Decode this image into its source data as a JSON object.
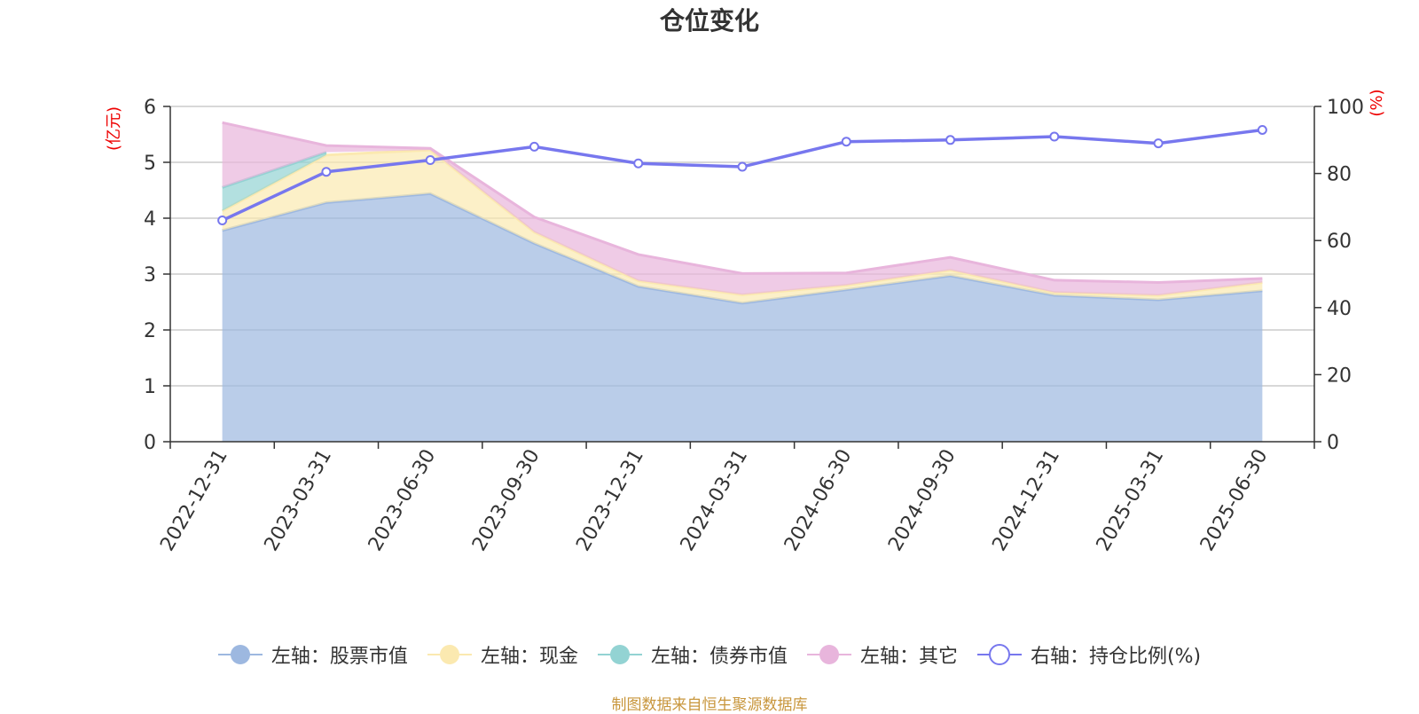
{
  "chart_data": {
    "type": "area",
    "title": "仓位变化",
    "categories": [
      "2022-12-31",
      "2023-03-31",
      "2023-06-30",
      "2023-09-30",
      "2023-12-31",
      "2024-03-31",
      "2024-06-30",
      "2024-09-30",
      "2024-12-31",
      "2025-03-31",
      "2025-06-30"
    ],
    "left_axis": {
      "label": "(亿元)",
      "min": 0,
      "max": 6,
      "ticks": [
        "0",
        "1",
        "2",
        "3",
        "4",
        "5",
        "6"
      ]
    },
    "right_axis": {
      "label": "(%)",
      "min": 0,
      "max": 100,
      "ticks": [
        "0",
        "20",
        "40",
        "60",
        "80",
        "100"
      ]
    },
    "grid": true,
    "stacked": true,
    "series": [
      {
        "name": "左轴：股票市值",
        "axis": "left",
        "color": "#9db8e0",
        "values": [
          3.78,
          4.28,
          4.44,
          3.55,
          2.78,
          2.48,
          2.72,
          2.97,
          2.62,
          2.54,
          2.7
        ]
      },
      {
        "name": "左轴：现金",
        "axis": "left",
        "color": "#fbe9b0",
        "values": [
          0.35,
          0.85,
          0.78,
          0.2,
          0.1,
          0.15,
          0.08,
          0.1,
          0.05,
          0.08,
          0.15
        ]
      },
      {
        "name": "左轴：债券市值",
        "axis": "left",
        "color": "#93d3d3",
        "values": [
          0.42,
          0.05,
          null,
          null,
          null,
          null,
          null,
          null,
          null,
          null,
          null
        ]
      },
      {
        "name": "左轴：其它",
        "axis": "left",
        "color": "#e8b5dc",
        "values": [
          1.16,
          0.12,
          0.03,
          0.27,
          0.47,
          0.38,
          0.22,
          0.23,
          0.22,
          0.23,
          0.07
        ]
      },
      {
        "name": "右轴：持仓比例(%)",
        "axis": "right",
        "type": "line",
        "color": "#7777ee",
        "values": [
          66,
          80.5,
          84,
          88,
          83,
          82,
          89.5,
          90,
          91,
          89,
          93
        ]
      }
    ],
    "legend_position": "bottom"
  },
  "source_note": "制图数据来自恒生聚源数据库"
}
